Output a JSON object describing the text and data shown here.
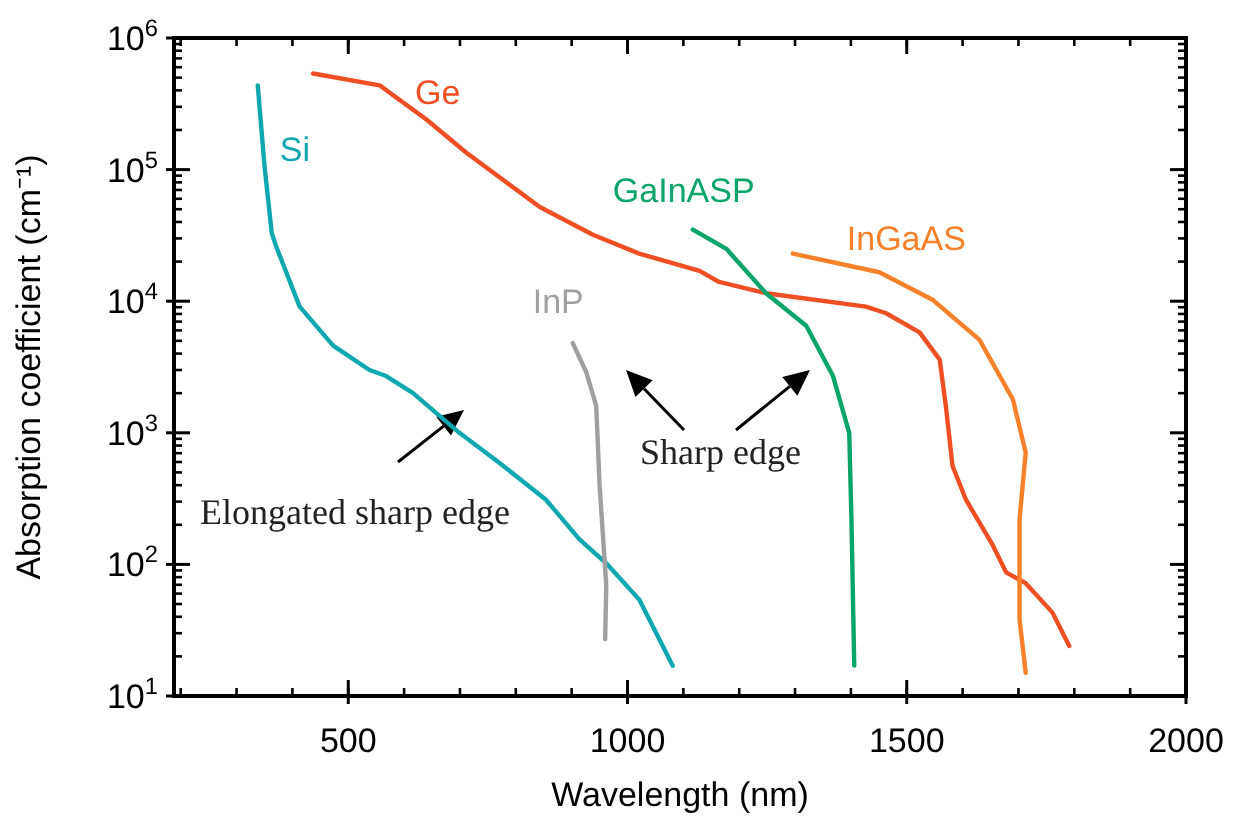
{
  "chart_data": {
    "type": "line",
    "xlabel": "Wavelength (nm)",
    "ylabel": "Absorption coefficient (cm⁻¹)",
    "log": "y",
    "xlim": [
      188,
      2000
    ],
    "ylim": [
      10,
      1000000
    ],
    "xticks": [
      500,
      1000,
      1500,
      2000
    ],
    "yticks": [
      {
        "value": 10,
        "label": "10$^{1}$"
      },
      {
        "value": 100,
        "label": "10$^{2}$"
      },
      {
        "value": 1000,
        "label": "10$^{3}$"
      },
      {
        "value": 10000,
        "label": "10$^{4}$"
      },
      {
        "value": 100000,
        "label": "10$^{5}$"
      },
      {
        "value": 1000000,
        "label": "10$^{6}$"
      }
    ],
    "grid": false,
    "marker": "none",
    "line_style": "solid",
    "series": [
      {
        "name": "Si",
        "color": "#10a8b0",
        "x": [
          338,
          350,
          363,
          371,
          413,
          473,
          538,
          568,
          616,
          699,
          771,
          854,
          914,
          962,
          1021,
          1081
        ],
        "values": [
          436000,
          107000,
          33000,
          26000,
          9100,
          4600,
          3000,
          2700,
          2000,
          1000,
          590,
          310,
          155,
          102,
          54,
          17
        ]
      },
      {
        "name": "Ge",
        "color": "#f04e23",
        "x": [
          437,
          556,
          640,
          711,
          843,
          938,
          1021,
          1129,
          1164,
          1248,
          1427,
          1463,
          1523,
          1559,
          1570,
          1582,
          1606,
          1654,
          1678,
          1713,
          1761,
          1791
        ],
        "values": [
          537000,
          437000,
          240000,
          135000,
          52000,
          32000,
          23000,
          17000,
          14000,
          11500,
          9100,
          8100,
          5800,
          3600,
          1600,
          560,
          310,
          140,
          87,
          72,
          43,
          24
        ]
      },
      {
        "name": "GaInASP",
        "color": "#0aa56a",
        "x": [
          1117,
          1177,
          1248,
          1320,
          1368,
          1397,
          1401,
          1406
        ],
        "values": [
          35000,
          25000,
          11500,
          6500,
          2700,
          1000,
          220,
          17
        ]
      },
      {
        "name": "InP",
        "color": "#a0a0a0",
        "x": [
          902,
          926,
          944,
          950,
          962,
          960
        ],
        "values": [
          4800,
          2900,
          1600,
          400,
          69,
          27
        ]
      },
      {
        "name": "InGaAS",
        "color": "#f7812a",
        "x": [
          1296,
          1451,
          1547,
          1630,
          1690,
          1702,
          1713,
          1702,
          1702,
          1713
        ],
        "values": [
          23000,
          16600,
          10200,
          5100,
          1800,
          1100,
          710,
          220,
          38,
          15
        ]
      }
    ],
    "annotations": [
      "Elongated sharp edge",
      "Sharp edge"
    ]
  }
}
